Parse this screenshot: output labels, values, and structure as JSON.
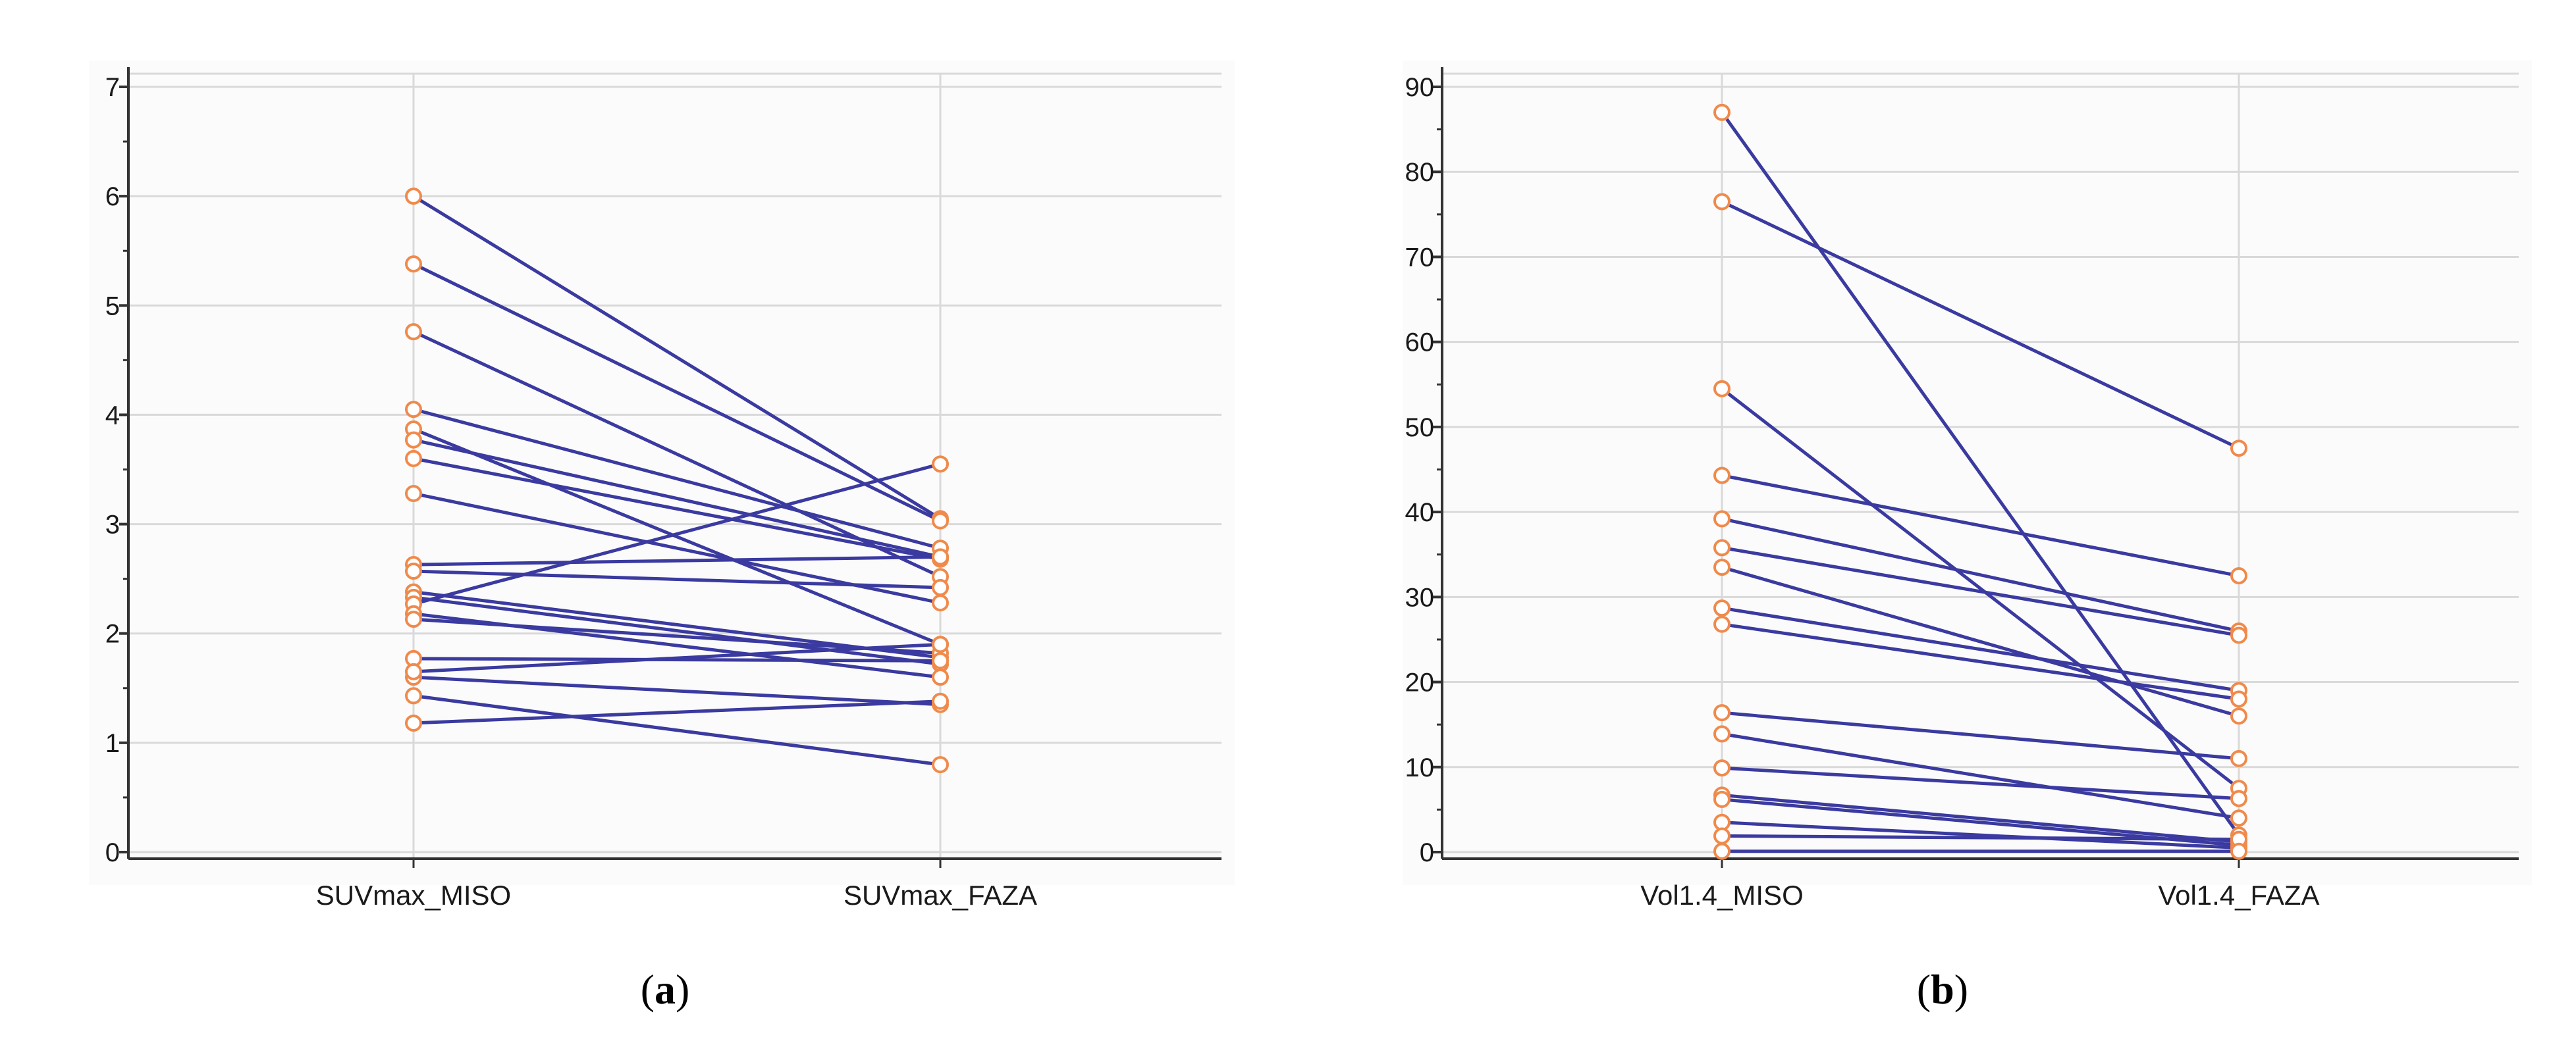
{
  "colors": {
    "line": "#3a3aa0",
    "marker": "#f08a4b",
    "grid": "#d9d9d9",
    "axis": "#333333",
    "text": "#1a1a1a"
  },
  "chart_data": [
    {
      "type": "line",
      "panel_label": "a",
      "categories": [
        "SUVmax_MISO",
        "SUVmax_FAZA"
      ],
      "ylim": [
        0,
        7
      ],
      "yticks": [
        "0",
        "1",
        "2",
        "3",
        "4",
        "5",
        "6",
        "7"
      ],
      "grid": true,
      "pairs": [
        [
          6.0,
          3.05
        ],
        [
          5.38,
          3.03
        ],
        [
          4.76,
          2.52
        ],
        [
          4.05,
          2.78
        ],
        [
          3.87,
          1.9
        ],
        [
          3.77,
          2.7
        ],
        [
          3.6,
          2.68
        ],
        [
          3.28,
          2.28
        ],
        [
          2.63,
          2.7
        ],
        [
          2.57,
          2.42
        ],
        [
          2.38,
          1.78
        ],
        [
          2.33,
          1.72
        ],
        [
          2.27,
          3.55
        ],
        [
          2.18,
          1.6
        ],
        [
          2.13,
          1.82
        ],
        [
          1.77,
          1.75
        ],
        [
          1.6,
          1.35
        ],
        [
          1.43,
          0.8
        ],
        [
          1.18,
          1.38
        ],
        [
          1.65,
          1.9
        ]
      ]
    },
    {
      "type": "line",
      "panel_label": "b",
      "categories": [
        "Vol1.4_MISO",
        "Vol1.4_FAZA"
      ],
      "ylim": [
        0,
        90
      ],
      "yticks": [
        "0",
        "10",
        "20",
        "30",
        "40",
        "50",
        "60",
        "70",
        "80",
        "90"
      ],
      "grid": true,
      "pairs": [
        [
          87.0,
          2.0
        ],
        [
          76.5,
          47.5
        ],
        [
          54.5,
          7.5
        ],
        [
          44.3,
          32.5
        ],
        [
          39.2,
          26.0
        ],
        [
          35.8,
          25.5
        ],
        [
          33.5,
          16.0
        ],
        [
          28.7,
          19.0
        ],
        [
          26.8,
          18.0
        ],
        [
          16.4,
          11.0
        ],
        [
          13.9,
          4.0
        ],
        [
          9.9,
          6.3
        ],
        [
          6.7,
          1.2
        ],
        [
          6.2,
          0.8
        ],
        [
          3.5,
          0.5
        ],
        [
          1.9,
          1.5
        ],
        [
          0.1,
          0.1
        ]
      ]
    }
  ]
}
